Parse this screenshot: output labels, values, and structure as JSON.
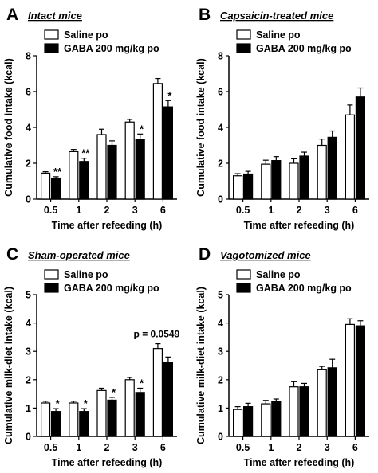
{
  "chart_data": [
    {
      "panel": "A",
      "title": "Intact mice",
      "type": "bar",
      "categories": [
        "0.5",
        "1",
        "2",
        "3",
        "6"
      ],
      "xlabel": "Time after refeeding (h)",
      "ylabel": "Cumulative food intake (kcal)",
      "ylim": [
        0,
        8
      ],
      "yticks": [
        "0",
        "2",
        "4",
        "6",
        "8"
      ],
      "series": [
        {
          "name": "Saline po",
          "color": "#ffffff",
          "values": [
            1.45,
            2.65,
            3.6,
            4.3,
            6.45
          ],
          "errors": [
            0.08,
            0.12,
            0.3,
            0.15,
            0.28
          ]
        },
        {
          "name": "GABA 200 mg/kg po",
          "color": "#000000",
          "values": [
            1.15,
            2.1,
            3.0,
            3.35,
            5.15
          ],
          "errors": [
            0.1,
            0.18,
            0.25,
            0.28,
            0.35
          ]
        }
      ],
      "significance": [
        "**",
        "**",
        "",
        "*",
        "*"
      ],
      "annotation": ""
    },
    {
      "panel": "B",
      "title": "Capsaicin-treated mice",
      "type": "bar",
      "categories": [
        "0.5",
        "1",
        "2",
        "3",
        "6"
      ],
      "xlabel": "Time after refeeding (h)",
      "ylabel": "Cumulative food intake (kcal)",
      "ylim": [
        0,
        8
      ],
      "yticks": [
        "0",
        "2",
        "4",
        "6",
        "8"
      ],
      "series": [
        {
          "name": "Saline po",
          "color": "#ffffff",
          "values": [
            1.3,
            1.95,
            2.0,
            3.0,
            4.7
          ],
          "errors": [
            0.12,
            0.22,
            0.25,
            0.35,
            0.55
          ]
        },
        {
          "name": "GABA 200 mg/kg po",
          "color": "#000000",
          "values": [
            1.4,
            2.15,
            2.4,
            3.45,
            5.7
          ],
          "errors": [
            0.15,
            0.22,
            0.22,
            0.35,
            0.5
          ]
        }
      ],
      "significance": [
        "",
        "",
        "",
        "",
        ""
      ],
      "annotation": ""
    },
    {
      "panel": "C",
      "title": "Sham-operated mice",
      "type": "bar",
      "categories": [
        "0.5",
        "1",
        "2",
        "3",
        "6"
      ],
      "xlabel": "Time after refeeding (h)",
      "ylabel": "Cumulative milk-diet intake (kcal)",
      "ylim": [
        0,
        5
      ],
      "yticks": [
        "0",
        "1",
        "2",
        "3",
        "4",
        "5"
      ],
      "series": [
        {
          "name": "Saline po",
          "color": "#ffffff",
          "values": [
            1.18,
            1.18,
            1.62,
            2.0,
            3.1
          ],
          "errors": [
            0.06,
            0.06,
            0.08,
            0.08,
            0.17
          ]
        },
        {
          "name": "GABA 200 mg/kg po",
          "color": "#000000",
          "values": [
            0.88,
            0.88,
            1.28,
            1.55,
            2.62
          ],
          "errors": [
            0.1,
            0.1,
            0.1,
            0.15,
            0.18
          ]
        }
      ],
      "significance": [
        "*",
        "*",
        "*",
        "*",
        ""
      ],
      "annotation": "p = 0.0549"
    },
    {
      "panel": "D",
      "title": "Vagotomized mice",
      "type": "bar",
      "categories": [
        "0.5",
        "1",
        "2",
        "3",
        "6"
      ],
      "xlabel": "Time after refeeding (h)",
      "ylabel": "Cumulative milk-diet intake (kcal)",
      "ylim": [
        0,
        5
      ],
      "yticks": [
        "0",
        "1",
        "2",
        "3",
        "4",
        "5"
      ],
      "series": [
        {
          "name": "Saline po",
          "color": "#ffffff",
          "values": [
            0.95,
            1.15,
            1.75,
            2.35,
            3.95
          ],
          "errors": [
            0.1,
            0.12,
            0.18,
            0.12,
            0.2
          ]
        },
        {
          "name": "GABA 200 mg/kg po",
          "color": "#000000",
          "values": [
            1.05,
            1.22,
            1.75,
            2.42,
            3.9
          ],
          "errors": [
            0.12,
            0.1,
            0.12,
            0.3,
            0.18
          ]
        }
      ],
      "significance": [
        "",
        "",
        "",
        "",
        ""
      ],
      "annotation": ""
    }
  ]
}
